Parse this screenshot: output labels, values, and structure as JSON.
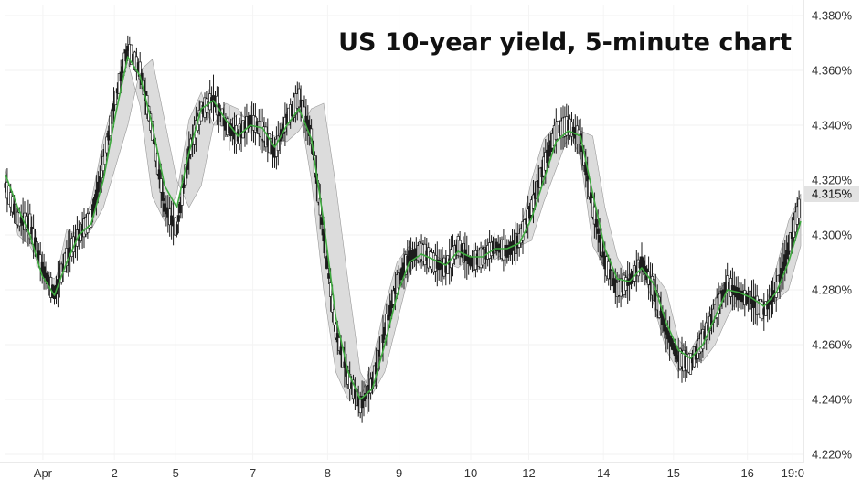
{
  "chart_data": {
    "type": "line",
    "title": "US 10-year yield, 5-minute chart",
    "xlabel": "",
    "ylabel": "",
    "x_tick_labels": [
      "Apr",
      "2",
      "5",
      "7",
      "8",
      "9",
      "10",
      "12",
      "14",
      "15",
      "16",
      "19:0"
    ],
    "y_tick_labels": [
      "4.380%",
      "4.360%",
      "4.340%",
      "4.320%",
      "4.300%",
      "4.280%",
      "4.260%",
      "4.240%",
      "4.220%"
    ],
    "ylim": [
      4.218,
      4.384
    ],
    "grid": true,
    "last_price_label": "4.315%",
    "last_price_value": 4.315,
    "series": [
      {
        "values": [
          4.318,
          4.306,
          4.304,
          4.288,
          4.278,
          4.292,
          4.3,
          4.306,
          4.326,
          4.35,
          4.368,
          4.36,
          4.338,
          4.31,
          4.302,
          4.33,
          4.345,
          4.35,
          4.34,
          4.336,
          4.342,
          4.338,
          4.33,
          4.342,
          4.35,
          4.336,
          4.3,
          4.265,
          4.248,
          4.238,
          4.246,
          4.265,
          4.282,
          4.292,
          4.294,
          4.29,
          4.288,
          4.296,
          4.29,
          4.292,
          4.296,
          4.294,
          4.298,
          4.31,
          4.325,
          4.338,
          4.34,
          4.335,
          4.31,
          4.29,
          4.28,
          4.283,
          4.29,
          4.28,
          4.265,
          4.255,
          4.253,
          4.262,
          4.272,
          4.282,
          4.278,
          4.276,
          4.272,
          4.28,
          4.295,
          4.312
        ]
      },
      {
        "values": [
          4.322,
          4.31,
          4.3,
          4.285,
          4.278,
          4.29,
          4.3,
          4.304,
          4.32,
          4.344,
          4.365,
          4.358,
          4.34,
          4.318,
          4.31,
          4.33,
          4.346,
          4.349,
          4.342,
          4.336,
          4.34,
          4.339,
          4.332,
          4.34,
          4.346,
          4.335,
          4.305,
          4.27,
          4.25,
          4.24,
          4.244,
          4.26,
          4.278,
          4.29,
          4.293,
          4.291,
          4.289,
          4.294,
          4.292,
          4.292,
          4.295,
          4.295,
          4.297,
          4.306,
          4.32,
          4.334,
          4.338,
          4.336,
          4.315,
          4.295,
          4.284,
          4.283,
          4.288,
          4.282,
          4.268,
          4.258,
          4.255,
          4.26,
          4.27,
          4.28,
          4.279,
          4.277,
          4.274,
          4.279,
          4.29,
          4.305
        ]
      },
      {
        "values": [
          4.32,
          4.308,
          4.298,
          4.286,
          4.284,
          4.292,
          4.298,
          4.302,
          4.31,
          4.325,
          4.34,
          4.36,
          4.364,
          4.342,
          4.32,
          4.31,
          4.318,
          4.34,
          4.348,
          4.346,
          4.34,
          4.338,
          4.336,
          4.334,
          4.338,
          4.346,
          4.348,
          4.318,
          4.283,
          4.25,
          4.242,
          4.25,
          4.268,
          4.286,
          4.292,
          4.293,
          4.29,
          4.288,
          4.292,
          4.292,
          4.291,
          4.294,
          4.296,
          4.298,
          4.312,
          4.324,
          4.336,
          4.338,
          4.336,
          4.31,
          4.292,
          4.283,
          4.283,
          4.286,
          4.28,
          4.262,
          4.256,
          4.254,
          4.26,
          4.27,
          4.278,
          4.277,
          4.275,
          4.276,
          4.28,
          4.296
        ]
      },
      {
        "values": [
          4.324,
          4.3,
          4.296,
          4.286,
          4.281,
          4.302,
          4.3,
          4.312,
          4.335,
          4.352,
          4.363,
          4.347,
          4.314,
          4.305,
          4.315,
          4.342,
          4.352,
          4.34,
          4.34,
          4.344,
          4.342,
          4.334,
          4.332,
          4.345,
          4.347,
          4.32,
          4.28,
          4.25,
          4.24,
          4.24,
          4.254,
          4.274,
          4.29,
          4.296,
          4.292,
          4.286,
          4.29,
          4.298,
          4.288,
          4.294,
          4.298,
          4.29,
          4.3,
          4.32,
          4.335,
          4.34,
          4.338,
          4.328,
          4.296,
          4.288,
          4.278,
          4.286,
          4.288,
          4.274,
          4.258,
          4.25,
          4.258,
          4.266,
          4.277,
          4.284,
          4.276,
          4.274,
          4.272,
          4.288,
          4.305,
          4.315
        ]
      }
    ]
  }
}
